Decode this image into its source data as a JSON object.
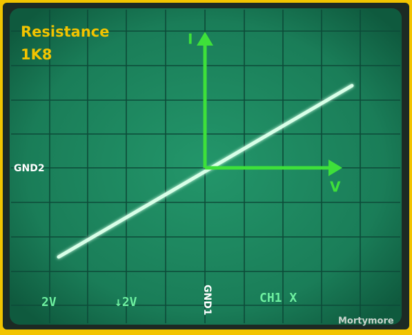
{
  "screen": {
    "title": "Resistance",
    "value": "1K8",
    "y_axis_label": "I",
    "x_axis_label": "V",
    "ground_left": "GND2",
    "ground_bottom": "GND1",
    "readouts": [
      "2V",
      "↓2V",
      "CH1 X"
    ],
    "credit": "Mortymore"
  }
}
